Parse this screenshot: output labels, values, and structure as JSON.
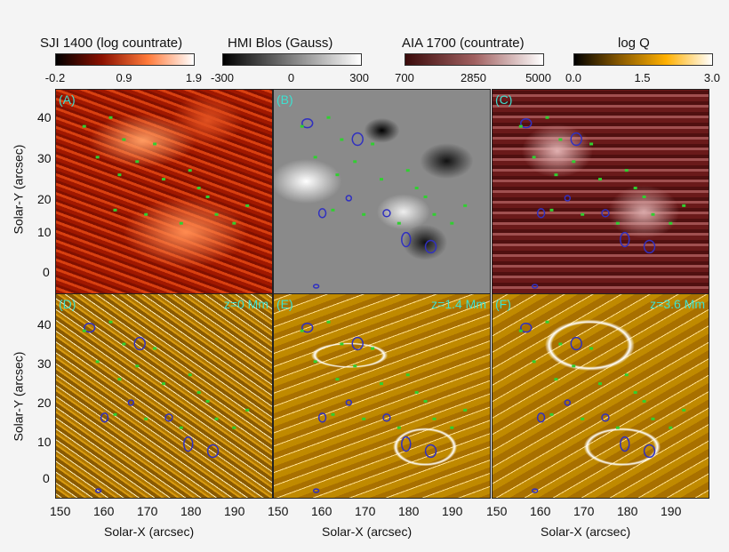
{
  "colorbars": [
    {
      "title": "SJI 1400 (log countrate)",
      "ticks": [
        "-0.2",
        "0.9",
        "1.9"
      ],
      "colors": [
        "#000000",
        "#8b1000",
        "#ff7a3a",
        "#ffffff"
      ]
    },
    {
      "title": "HMI Blos (Gauss)",
      "ticks": [
        "-300",
        "0",
        "300"
      ],
      "colors": [
        "#000000",
        "#808080",
        "#ffffff"
      ]
    },
    {
      "title": "AIA 1700 (countrate)",
      "ticks": [
        "700",
        "2850",
        "5000"
      ],
      "colors": [
        "#3a0a0a",
        "#a06060",
        "#ffffff"
      ]
    },
    {
      "title": "log Q",
      "ticks": [
        "0.0",
        "1.5",
        "3.0"
      ],
      "colors": [
        "#000000",
        "#8a5a00",
        "#ffb000",
        "#ffffff"
      ]
    }
  ],
  "panels": [
    {
      "label": "(A)",
      "z": ""
    },
    {
      "label": "(B)",
      "z": ""
    },
    {
      "label": "(C)",
      "z": ""
    },
    {
      "label": "(D)",
      "z": "z=0 Mm"
    },
    {
      "label": "(E)",
      "z": "z=1.4 Mm"
    },
    {
      "label": "(F)",
      "z": "z=3.6 Mm"
    }
  ],
  "chart_data": {
    "type": "heatmap",
    "xlabel": "Solar-X (arcsec)",
    "ylabel": "Solar-Y (arcsec)",
    "xticks": [
      "150",
      "160",
      "170",
      "180",
      "190"
    ],
    "yticks": [
      "40",
      "30",
      "20",
      "10",
      "0"
    ],
    "xlim": [
      149,
      199
    ],
    "ylim": [
      -5,
      47
    ],
    "contour_color": "#3030c0",
    "marker_color": "#30d030"
  }
}
